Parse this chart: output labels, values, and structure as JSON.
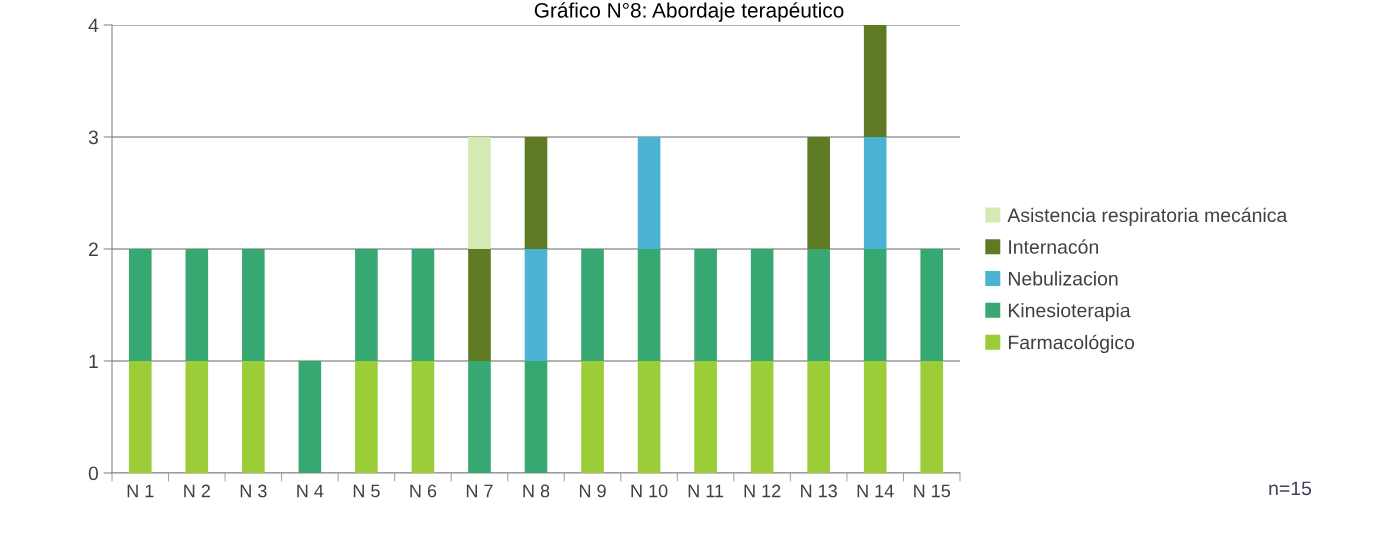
{
  "chart_data": {
    "type": "bar",
    "title": "Gráfico N°8: Abordaje terapéutico",
    "stacked": true,
    "categories": [
      "N 1",
      "N 2",
      "N 3",
      "N 4",
      "N 5",
      "N 6",
      "N 7",
      "N 8",
      "N 9",
      "N 10",
      "N 11",
      "N 12",
      "N 13",
      "N 14",
      "N 15"
    ],
    "series": [
      {
        "name": "Farmacológico",
        "color": "#9acd38",
        "values": [
          1,
          1,
          1,
          0,
          1,
          1,
          0,
          0,
          1,
          1,
          1,
          1,
          1,
          1,
          1
        ]
      },
      {
        "name": "Kinesioterapia",
        "color": "#38a872",
        "values": [
          1,
          1,
          1,
          1,
          1,
          1,
          1,
          1,
          1,
          1,
          1,
          1,
          1,
          1,
          1
        ]
      },
      {
        "name": "Nebulizacion",
        "color": "#4db3d3",
        "values": [
          0,
          0,
          0,
          0,
          0,
          0,
          0,
          1,
          0,
          1,
          0,
          0,
          0,
          1,
          0
        ]
      },
      {
        "name": "Internacón",
        "color": "#5e7a22",
        "values": [
          0,
          0,
          0,
          0,
          0,
          0,
          1,
          1,
          0,
          0,
          0,
          0,
          1,
          1,
          0
        ]
      },
      {
        "name": "Asistencia respiratoria mecánica",
        "color": "#d5e9b0",
        "values": [
          0,
          0,
          0,
          0,
          0,
          0,
          1,
          0,
          0,
          0,
          0,
          0,
          0,
          0,
          0
        ]
      }
    ],
    "ylim": [
      0,
      4
    ],
    "yticks": [
      0,
      1,
      2,
      3,
      4
    ],
    "grid": "y",
    "legend": "right",
    "annotations": [
      "n=15"
    ]
  }
}
